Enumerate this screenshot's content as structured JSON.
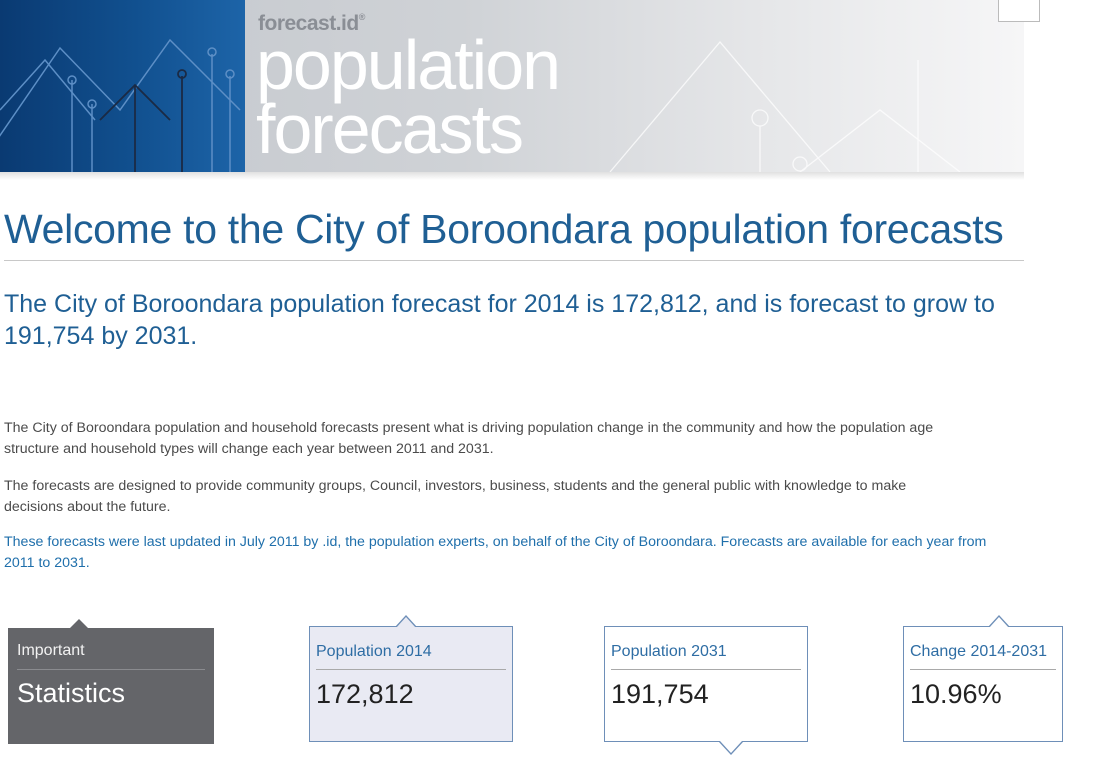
{
  "banner": {
    "brand": "forecast.id",
    "brand_mark": "®",
    "title_line1": "population",
    "title_line2": "forecasts"
  },
  "main": {
    "heading": "Welcome to the City of Boroondara population forecasts",
    "subheading": "The City of Boroondara population forecast for 2014 is 172,812, and is forecast to grow to 191,754 by 2031.",
    "paragraphs": [
      {
        "line1": "The City of Boroondara population and household forecasts present what is driving population change in the community and how the population age",
        "line2": "structure and household types will change each year between 2011 and 2031."
      },
      {
        "line1": "The forecasts are designed to provide community groups, Council, investors, business, students and the general public with knowledge to make",
        "line2": "decisions about the future."
      },
      {
        "line1": "These forecasts were last updated in July 2011 by .id, the population experts, on behalf of the City of Boroondara. Forecasts are available for each year from",
        "line2": "2011 to 2031."
      }
    ]
  },
  "stats": {
    "important": {
      "label": "Important",
      "value": "Statistics"
    },
    "pop2014": {
      "label": "Population 2014",
      "value": "172,812"
    },
    "pop2031": {
      "label": "Population 2031",
      "value": "191,754"
    },
    "change": {
      "label": "Change 2014-2031",
      "value": "10.96%"
    }
  },
  "colors": {
    "brand_blue": "#1f5f94",
    "banner_blue": "#0a3a72",
    "card_border": "#6e8fb8",
    "important_card": "#646569"
  }
}
